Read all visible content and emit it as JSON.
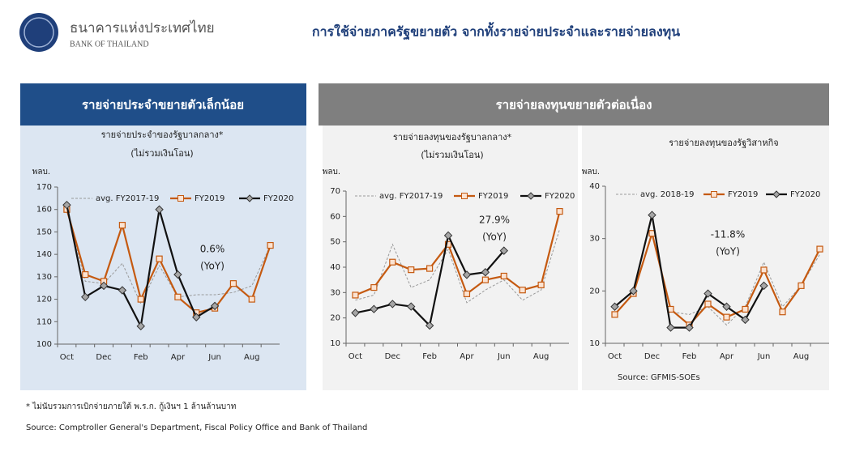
{
  "header": {
    "org_thai": "ธนาคารแห่งประเทศไทย",
    "org_en": "BANK OF THAILAND",
    "title": "การใช้จ่ายภาครัฐขยายตัว จากทั้งรายจ่ายประจำและรายจ่ายลงทุน"
  },
  "panels": [
    {
      "title": "รายจ่ายประจำขยายตัวเล็กน้อย"
    },
    {
      "title": "รายจ่ายลงทุนขยายตัวต่อเนื่อง"
    }
  ],
  "chart_data": [
    {
      "type": "line",
      "title": "รายจ่ายประจำของรัฐบาลกลาง*",
      "subtitle": "(ไม่รวมเงินโอน)",
      "y_label": "พลบ.",
      "categories": [
        "Oct",
        null,
        "Dec",
        null,
        "Feb",
        null,
        "Apr",
        null,
        "Jun",
        null,
        "Aug",
        null
      ],
      "ylim": [
        100,
        170
      ],
      "yticks": [
        100,
        110,
        120,
        130,
        140,
        150,
        160,
        170
      ],
      "series": [
        {
          "name": "avg. FY2017-19",
          "color": "#999999",
          "line_style": "dashed",
          "marker": "none",
          "values": [
            160,
            128,
            127,
            136,
            118,
            135,
            121,
            122,
            122,
            123,
            126,
            144
          ]
        },
        {
          "name": "FY2019",
          "color": "#c55a11",
          "line_style": "solid",
          "marker": "square",
          "values": [
            160,
            131,
            128,
            153,
            120,
            138,
            121,
            114,
            116,
            127,
            120,
            144
          ]
        },
        {
          "name": "FY2020",
          "color": "#111111",
          "line_style": "solid",
          "marker": "diamond",
          "values": [
            162,
            121,
            126,
            124,
            108,
            160,
            131,
            112,
            117,
            null,
            null,
            null
          ]
        }
      ],
      "annotation": {
        "text": "0.6%",
        "note": "(YoY)",
        "color": "#00b050"
      }
    },
    {
      "type": "line",
      "title": "รายจ่ายลงทุนของรัฐบาลกลาง*",
      "subtitle": "(ไม่รวมเงินโอน)",
      "y_label": "พลบ.",
      "categories": [
        "Oct",
        null,
        "Dec",
        null,
        "Feb",
        null,
        "Apr",
        null,
        "Jun",
        null,
        "Aug",
        null
      ],
      "ylim": [
        10,
        70
      ],
      "yticks": [
        10,
        20,
        30,
        40,
        50,
        60,
        70
      ],
      "series": [
        {
          "name": "avg. FY2017-19",
          "color": "#999999",
          "line_style": "dashed",
          "marker": "none",
          "values": [
            27,
            29,
            49,
            32,
            35,
            47,
            26,
            31,
            35,
            27,
            31,
            55
          ]
        },
        {
          "name": "FY2019",
          "color": "#c55a11",
          "line_style": "solid",
          "marker": "square",
          "values": [
            29,
            32,
            42,
            39,
            39.5,
            49,
            29.5,
            35,
            36.5,
            31,
            33,
            62
          ]
        },
        {
          "name": "FY2020",
          "color": "#111111",
          "line_style": "solid",
          "marker": "diamond",
          "values": [
            22,
            23.5,
            25.5,
            24.5,
            17,
            52.5,
            37,
            38,
            46.5,
            null,
            null,
            null
          ]
        }
      ],
      "annotation": {
        "text": "27.9%",
        "note": "(YoY)",
        "color": "#00b050"
      }
    },
    {
      "type": "line",
      "title": "รายจ่ายลงทุนของรัฐวิสาหกิจ",
      "y_label": "พลบ.",
      "categories": [
        "Oct",
        null,
        "Dec",
        null,
        "Feb",
        null,
        "Apr",
        null,
        "Jun",
        null,
        "Aug",
        null
      ],
      "ylim": [
        10,
        40
      ],
      "yticks": [
        10,
        20,
        30,
        40
      ],
      "series": [
        {
          "name": "avg. 2018-19",
          "color": "#999999",
          "line_style": "dashed",
          "marker": "none",
          "values": [
            15.5,
            19.5,
            31,
            16,
            15.5,
            17,
            13.5,
            17,
            25.5,
            17,
            21,
            27
          ]
        },
        {
          "name": "FY2019",
          "color": "#c55a11",
          "line_style": "solid",
          "marker": "square",
          "values": [
            15.5,
            19.5,
            31,
            16.5,
            13.5,
            17.5,
            15,
            16.5,
            24,
            16,
            21,
            28
          ]
        },
        {
          "name": "FY2020",
          "color": "#111111",
          "line_style": "solid",
          "marker": "diamond",
          "values": [
            17,
            20,
            34.5,
            13,
            13,
            19.5,
            17,
            14.5,
            21,
            null,
            null,
            null
          ]
        }
      ],
      "annotation": {
        "text": "-11.8%",
        "note": "(YoY)",
        "color": "#e0201b"
      },
      "source": "Source: GFMIS-SOEs"
    }
  ],
  "footnote": "* ไม่นับรวมการเบิกจ่ายภายใต้ พ.ร.ก. กู้เงินฯ 1 ล้านล้านบาท",
  "source": "Source: Comptroller General's Department, Fiscal Policy Office and Bank of Thailand"
}
